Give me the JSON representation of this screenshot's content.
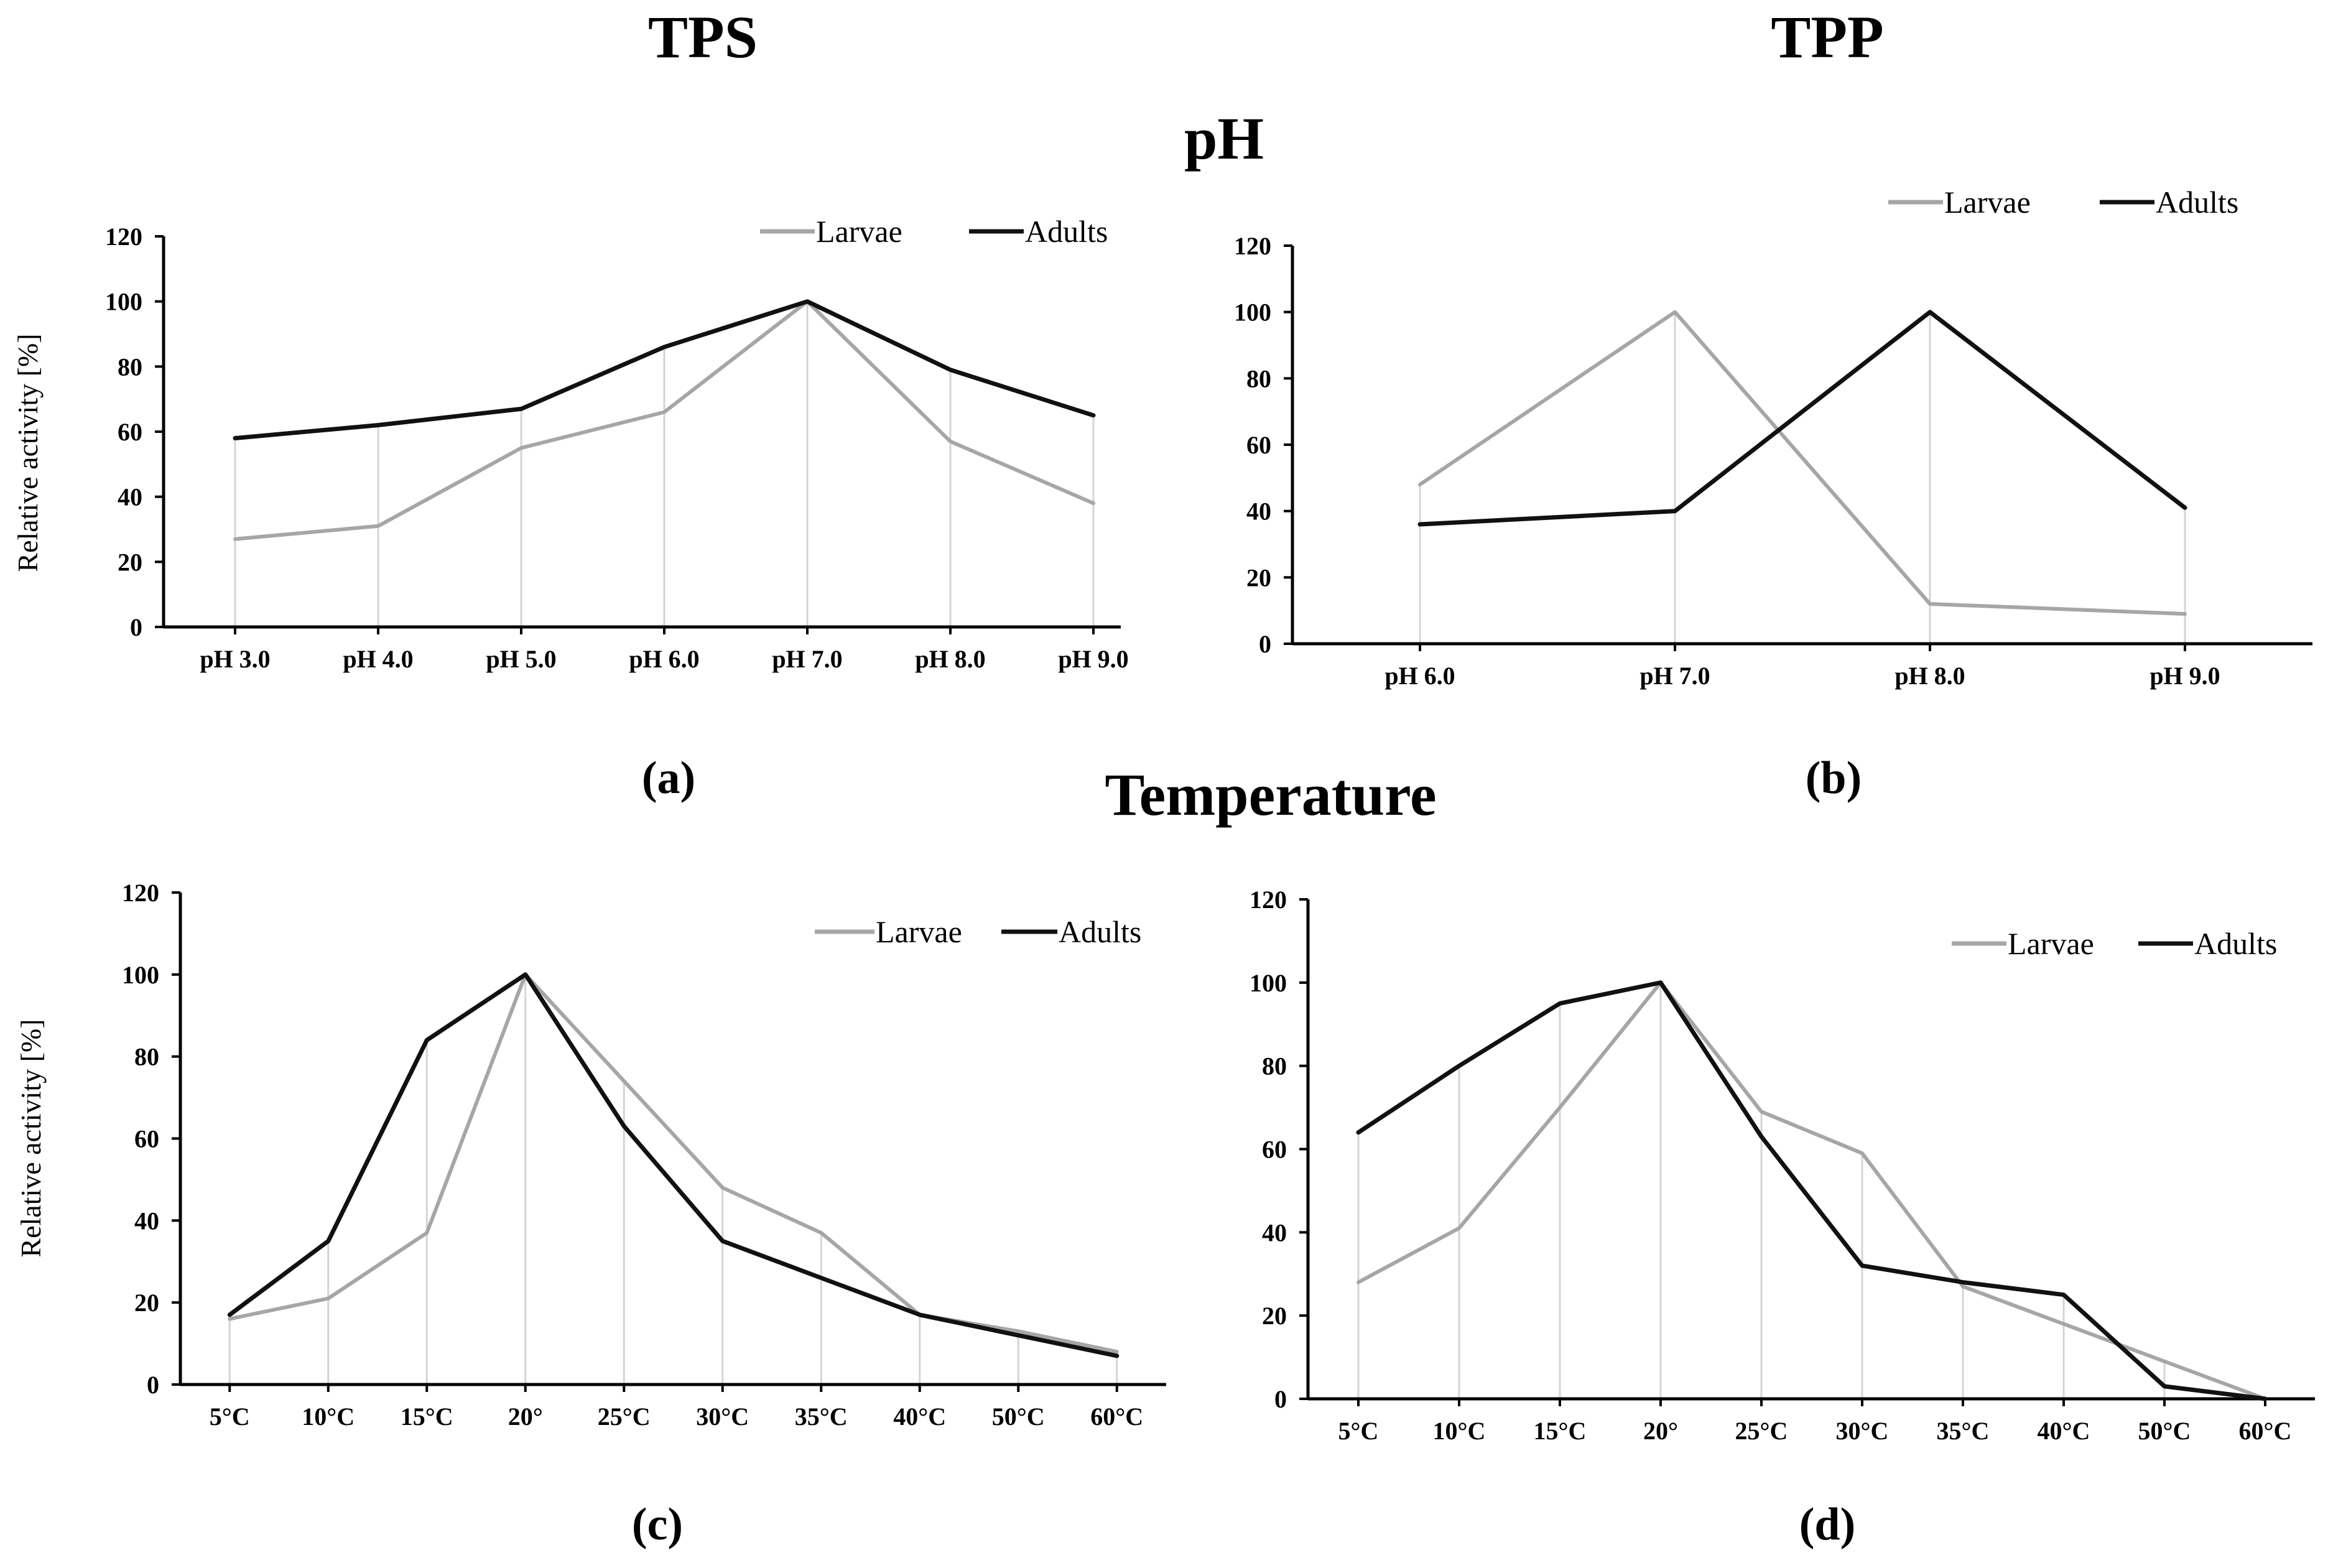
{
  "headings": {
    "left": "TPS",
    "right": "TPP",
    "row1": "pH",
    "row2": "Temperature"
  },
  "colors": {
    "larvae": "#a6a6a6",
    "adults": "#111111",
    "axis": "#000000",
    "dropline": "#d4d4d4"
  },
  "chart_data": [
    {
      "id": "a",
      "type": "line",
      "panel_label": "(a)",
      "categories": [
        "pH 3.0",
        "pH 4.0",
        "pH 5.0",
        "pH 6.0",
        "pH 7.0",
        "pH 8.0",
        "pH 9.0"
      ],
      "series": [
        {
          "name": "Larvae",
          "values": [
            27,
            31,
            55,
            66,
            100,
            57,
            38
          ]
        },
        {
          "name": "Adults",
          "values": [
            58,
            62,
            67,
            86,
            100,
            79,
            65
          ]
        }
      ],
      "ylabel": "Relative activity [%]",
      "ylim": [
        0,
        120
      ],
      "yticks": [
        "0",
        "20",
        "40",
        "60",
        "80",
        "100",
        "120"
      ],
      "legend": "top-right"
    },
    {
      "id": "b",
      "type": "line",
      "panel_label": "(b)",
      "categories": [
        "pH 6.0",
        "pH 7.0",
        "pH 8.0",
        "pH 9.0"
      ],
      "series": [
        {
          "name": "Larvae",
          "values": [
            48,
            100,
            12,
            9
          ]
        },
        {
          "name": "Adults",
          "values": [
            36,
            40,
            100,
            41
          ]
        }
      ],
      "ylabel": "",
      "ylim": [
        0,
        120
      ],
      "yticks": [
        "0",
        "20",
        "40",
        "60",
        "80",
        "100",
        "120"
      ],
      "legend": "top-right"
    },
    {
      "id": "c",
      "type": "line",
      "panel_label": "(c)",
      "categories": [
        "5°C",
        "10°C",
        "15°C",
        "20°",
        "25°C",
        "30°C",
        "35°C",
        "40°C",
        "50°C",
        "60°C"
      ],
      "series": [
        {
          "name": "Larvae",
          "values": [
            16,
            21,
            37,
            100,
            74,
            48,
            37,
            17,
            13,
            8
          ]
        },
        {
          "name": "Adults",
          "values": [
            17,
            35,
            84,
            100,
            63,
            35,
            26,
            17,
            12,
            7
          ]
        }
      ],
      "ylabel": "Relative activity [%]",
      "ylim": [
        0,
        120
      ],
      "yticks": [
        "0",
        "20",
        "40",
        "60",
        "80",
        "100",
        "120"
      ],
      "legend": "top-right"
    },
    {
      "id": "d",
      "type": "line",
      "panel_label": "(d)",
      "categories": [
        "5°C",
        "10°C",
        "15°C",
        "20°",
        "25°C",
        "30°C",
        "35°C",
        "40°C",
        "50°C",
        "60°C"
      ],
      "series": [
        {
          "name": "Larvae",
          "values": [
            28,
            41,
            70,
            100,
            69,
            59,
            27,
            18,
            9,
            0
          ]
        },
        {
          "name": "Adults",
          "values": [
            64,
            80,
            95,
            100,
            63,
            32,
            28,
            25,
            3,
            0
          ]
        }
      ],
      "ylabel": "",
      "ylim": [
        0,
        120
      ],
      "yticks": [
        "0",
        "20",
        "40",
        "60",
        "80",
        "100",
        "120"
      ],
      "legend": "top-right"
    }
  ]
}
